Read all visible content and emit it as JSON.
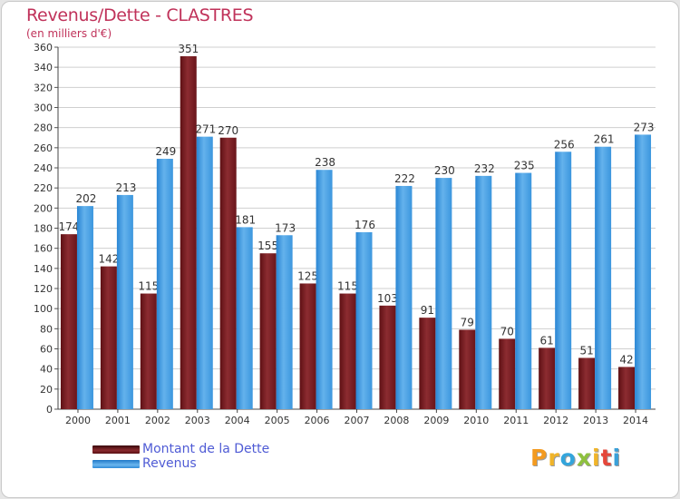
{
  "chart_data": {
    "type": "bar",
    "title": "Revenus/Dette - CLASTRES",
    "subtitle": "(en milliers d'€)",
    "categories": [
      "2000",
      "2001",
      "2002",
      "2003",
      "2004",
      "2005",
      "2006",
      "2007",
      "2008",
      "2009",
      "2010",
      "2011",
      "2012",
      "2013",
      "2014"
    ],
    "series": [
      {
        "name": "Montant de la Dette",
        "color": "#7a1b1f",
        "values": [
          174,
          142,
          115,
          351,
          270,
          155,
          125,
          115,
          103,
          91,
          79,
          70,
          61,
          51,
          42
        ]
      },
      {
        "name": "Revenus",
        "color": "#3d9ee4",
        "values": [
          202,
          213,
          249,
          271,
          181,
          173,
          238,
          176,
          222,
          230,
          232,
          235,
          256,
          261,
          273
        ]
      }
    ],
    "ylim": [
      0,
      360
    ],
    "ytick_step": 20,
    "grid": true,
    "legend_position": "bottom-left"
  },
  "logo": {
    "letters": [
      "P",
      "r",
      "o",
      "x",
      "i",
      "t",
      "i"
    ],
    "colors": [
      "#f39a1f",
      "#f0b429",
      "#33a5dc",
      "#8ec13e",
      "#f0b429",
      "#e5473a",
      "#3aa0d8"
    ]
  }
}
